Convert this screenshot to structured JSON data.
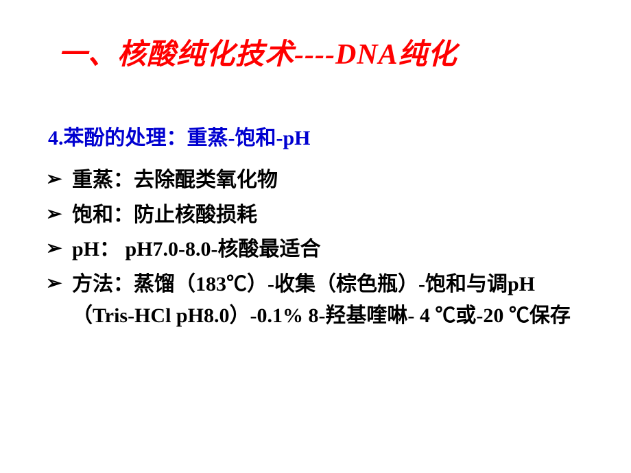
{
  "slide": {
    "title": "一、核酸纯化技术----DNA纯化",
    "subtitle": "4.苯酚的处理：重蒸-饱和-pH",
    "bullets": [
      {
        "text": "重蒸：去除醌类氧化物"
      },
      {
        "text": " 饱和：防止核酸损耗"
      },
      {
        "text": " pH： pH7.0-8.0-核酸最适合"
      },
      {
        "text": "方法：蒸馏（183℃）-收集（棕色瓶）-饱和与调pH（Tris-HCl pH8.0）-0.1% 8-羟基喹啉- 4 ℃或-20 ℃保存"
      }
    ],
    "colors": {
      "title": "#ff0000",
      "subtitle": "#0000d0",
      "body": "#000000",
      "background": "#ffffff"
    },
    "fonts": {
      "title_size_pt": 32,
      "body_size_pt": 22,
      "weight": "bold",
      "style_title": "italic"
    }
  }
}
